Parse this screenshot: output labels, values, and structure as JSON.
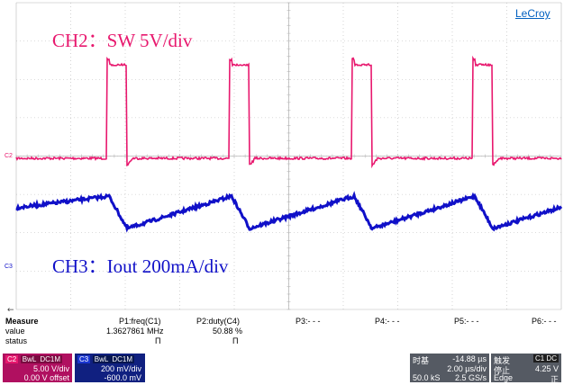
{
  "brand": "LeCroy",
  "overlay": {
    "ch2": "CH2：SW 5V/div",
    "ch3": "CH3：Iout 200mA/div"
  },
  "markers": {
    "c2": "C2",
    "c3": "C3"
  },
  "colors": {
    "ch2": "#e8186e",
    "ch3": "#1010c8",
    "grid": "#b8b8b8",
    "brand": "#0060c0"
  },
  "measure": {
    "title": "Measure",
    "row_labels": [
      "value",
      "status"
    ],
    "params": [
      {
        "name": "P1:freq(C1)",
        "value": "1.3627861 MHz",
        "status": "Π"
      },
      {
        "name": "P2:duty(C4)",
        "value": "50.88 %",
        "status": "Π"
      },
      {
        "name": "P3:- - -",
        "value": "",
        "status": ""
      },
      {
        "name": "P4:- - -",
        "value": "",
        "status": ""
      },
      {
        "name": "P5:- - -",
        "value": "",
        "status": ""
      },
      {
        "name": "P6:- - -",
        "value": "",
        "status": ""
      }
    ]
  },
  "channels": [
    {
      "id": "C2",
      "coupling": "DC1M",
      "bw": "BwL",
      "scale": "5.00 V/div",
      "offset": "0.00 V offset"
    },
    {
      "id": "C3",
      "coupling": "DC1M",
      "bw": "BwL",
      "scale": "200 mV/div",
      "offset": "-600.0 mV"
    }
  ],
  "timebase": {
    "label": "时基",
    "delay": "-14.88 µs",
    "per_div": "2.00 µs/div",
    "samples": "50.0 kS",
    "rate": "2.5 GS/s"
  },
  "trigger": {
    "label": "触发",
    "source": "C1 DC",
    "mode": "停止",
    "level": "4.25 V",
    "type": "Edge",
    "slope": "正"
  }
}
